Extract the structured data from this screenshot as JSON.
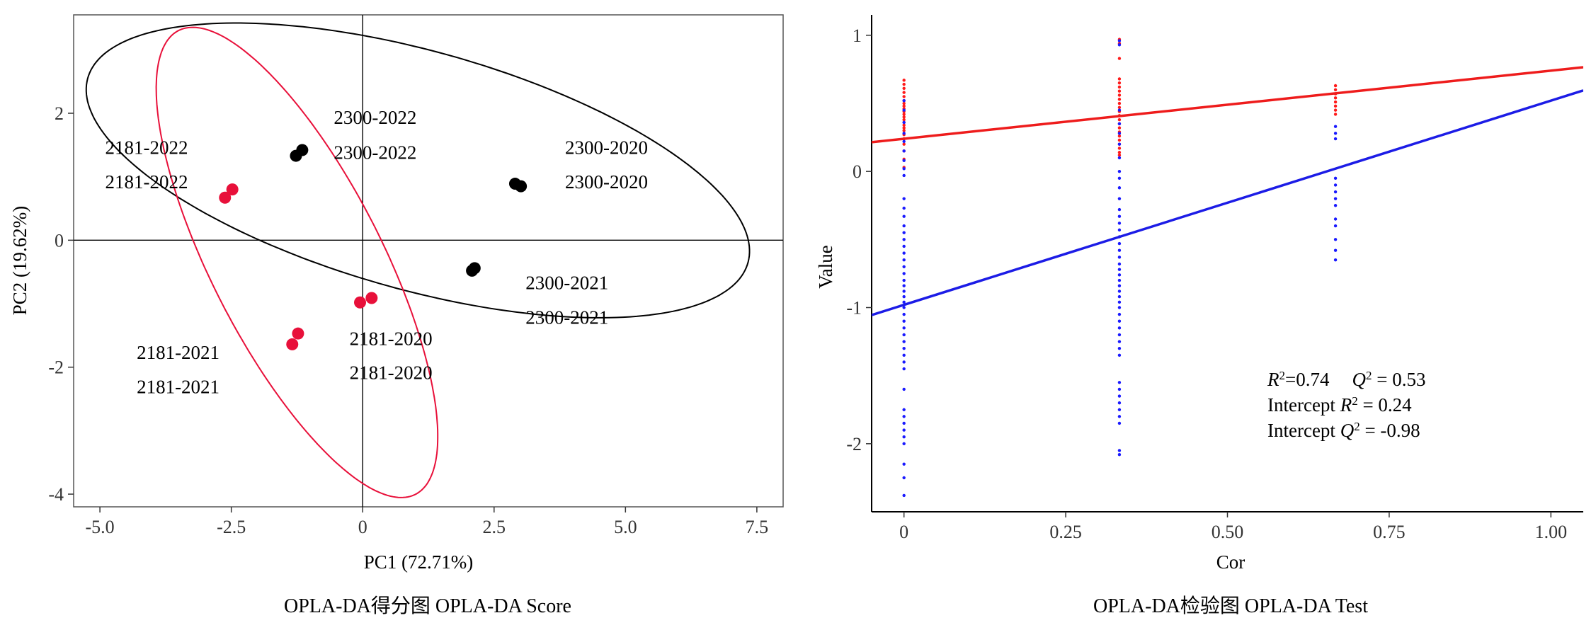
{
  "figure": {
    "panels": [
      {
        "caption": "OPLA-DA得分图 OPLA-DA Score"
      },
      {
        "caption": "OPLA-DA检验图 OPLA-DA Test"
      }
    ]
  },
  "chart_data": [
    {
      "type": "scatter",
      "title": "",
      "xlabel": "PC1 (72.71%)",
      "ylabel": "PC2 (19.62%)",
      "xlim": [
        -5.5,
        8.0
      ],
      "ylim": [
        -4.2,
        3.55
      ],
      "xticks": [
        -5.0,
        -2.5,
        0,
        2.5,
        5.0,
        7.5
      ],
      "xtick_labels": [
        "-5.0",
        "-2.5",
        "0",
        "2.5",
        "5.0",
        "7.5"
      ],
      "yticks": [
        2,
        0,
        -2,
        -4
      ],
      "ytick_labels": [
        "2",
        "0",
        "-2",
        "-4"
      ],
      "grid": false,
      "reference_lines": {
        "x": 0,
        "y": 0
      },
      "colors": {
        "group_2181": "#e8103a",
        "group_2300": "#000000",
        "ellipse_2181": "#e8103a",
        "ellipse_2300": "#000000"
      },
      "series": [
        {
          "group": "2181",
          "color": "#e8103a",
          "points": [
            {
              "x": -2.62,
              "y": 0.67
            },
            {
              "x": -2.48,
              "y": 0.8
            },
            {
              "x": -0.05,
              "y": -0.98
            },
            {
              "x": 0.17,
              "y": -0.91
            },
            {
              "x": -1.34,
              "y": -1.64
            },
            {
              "x": -1.23,
              "y": -1.47
            }
          ]
        },
        {
          "group": "2300",
          "color": "#000000",
          "points": [
            {
              "x": -1.27,
              "y": 1.33
            },
            {
              "x": -1.15,
              "y": 1.42
            },
            {
              "x": 2.9,
              "y": 0.89
            },
            {
              "x": 3.01,
              "y": 0.85
            },
            {
              "x": 2.08,
              "y": -0.48
            },
            {
              "x": 2.13,
              "y": -0.44
            }
          ]
        }
      ],
      "ellipses": [
        {
          "group": "2300",
          "color": "#000000",
          "center": [
            1.05,
            1.1
          ],
          "semi_axes": [
            6.45,
            1.9
          ],
          "angle_deg": -12.5
        },
        {
          "group": "2181",
          "color": "#e8103a",
          "center": [
            -1.25,
            -0.35
          ],
          "semi_axes": [
            4.3,
            1.55
          ],
          "angle_deg": -57
        }
      ],
      "annotations": [
        {
          "text": "2300-2022",
          "x": -0.55,
          "y": 1.83
        },
        {
          "text": "2300-2022",
          "x": -0.55,
          "y": 1.28
        },
        {
          "text": "2181-2022",
          "x": -4.9,
          "y": 1.36
        },
        {
          "text": "2181-2022",
          "x": -4.9,
          "y": 0.82
        },
        {
          "text": "2300-2020",
          "x": 3.85,
          "y": 1.36
        },
        {
          "text": "2300-2020",
          "x": 3.85,
          "y": 0.82
        },
        {
          "text": "2300-2021",
          "x": 3.1,
          "y": -0.77
        },
        {
          "text": "2300-2021",
          "x": 3.1,
          "y": -1.32
        },
        {
          "text": "2181-2020",
          "x": -0.25,
          "y": -1.65
        },
        {
          "text": "2181-2020",
          "x": -0.25,
          "y": -2.19
        },
        {
          "text": "2181-2021",
          "x": -4.3,
          "y": -1.87
        },
        {
          "text": "2181-2021",
          "x": -4.3,
          "y": -2.41
        }
      ]
    },
    {
      "type": "scatter",
      "title": "",
      "xlabel": "Cor",
      "ylabel": "Value",
      "xlim": [
        -0.05,
        1.05
      ],
      "ylim": [
        -2.5,
        1.15
      ],
      "xticks": [
        0,
        0.25,
        0.5,
        0.75,
        1.0
      ],
      "xtick_labels": [
        "0",
        "0.25",
        "0.50",
        "0.75",
        "1.00"
      ],
      "yticks": [
        1,
        0,
        -1,
        -2
      ],
      "ytick_labels": [
        "1",
        "0",
        "-1",
        "-2"
      ],
      "grid": false,
      "colors": {
        "R2": "#ff1a1a",
        "Q2": "#1a1aff",
        "R2_line": "#ee1c1c",
        "Q2_line": "#1c1ce6"
      },
      "series": [
        {
          "metric": "R2",
          "color": "#ff1a1a",
          "x": 0,
          "values": [
            0.67,
            0.64,
            0.61,
            0.58,
            0.55,
            0.52,
            0.5,
            0.48,
            0.46,
            0.44,
            0.42,
            0.4,
            0.38,
            0.36,
            0.34,
            0.32,
            0.3,
            0.27,
            0.24,
            0.2,
            0.15,
            0.09,
            0.03
          ]
        },
        {
          "metric": "Q2",
          "color": "#1a1aff",
          "x": 0,
          "values": [
            0.52,
            0.45,
            0.36,
            0.28,
            0.22,
            0.15,
            0.08,
            0.02,
            -0.03,
            -0.2,
            -0.27,
            -0.33,
            -0.4,
            -0.45,
            -0.5,
            -0.55,
            -0.6,
            -0.65,
            -0.7,
            -0.75,
            -0.8,
            -0.84,
            -0.88,
            -0.92,
            -0.96,
            -1.0,
            -1.05,
            -1.1,
            -1.15,
            -1.2,
            -1.25,
            -1.3,
            -1.35,
            -1.4,
            -1.45,
            -1.6,
            -1.75,
            -1.8,
            -1.85,
            -1.9,
            -1.95,
            -2.0,
            -2.15,
            -2.25,
            -2.38
          ]
        },
        {
          "metric": "R2",
          "color": "#ff1a1a",
          "x": 0.333,
          "values": [
            0.97,
            0.94,
            0.83,
            0.68,
            0.65,
            0.62,
            0.59,
            0.56,
            0.53,
            0.5,
            0.47,
            0.44,
            0.41,
            0.38,
            0.35,
            0.32,
            0.29,
            0.26,
            0.23,
            0.2,
            0.17,
            0.14,
            0.12
          ]
        },
        {
          "metric": "Q2",
          "color": "#1a1aff",
          "x": 0.333,
          "values": [
            0.96,
            0.93,
            0.45,
            0.35,
            0.28,
            0.2,
            0.1,
            0.0,
            -0.05,
            -0.12,
            -0.2,
            -0.28,
            -0.33,
            -0.38,
            -0.43,
            -0.48,
            -0.53,
            -0.58,
            -0.63,
            -0.68,
            -0.72,
            -0.76,
            -0.8,
            -0.84,
            -0.88,
            -0.92,
            -0.96,
            -1.0,
            -1.05,
            -1.1,
            -1.15,
            -1.2,
            -1.25,
            -1.3,
            -1.35,
            -1.55,
            -1.6,
            -1.65,
            -1.7,
            -1.75,
            -1.8,
            -1.85,
            -2.05,
            -2.08
          ]
        },
        {
          "metric": "R2",
          "color": "#ff1a1a",
          "x": 0.667,
          "values": [
            0.63,
            0.6,
            0.57,
            0.54,
            0.51,
            0.48,
            0.45,
            0.42
          ]
        },
        {
          "metric": "Q2",
          "color": "#1a1aff",
          "x": 0.667,
          "values": [
            0.33,
            0.28,
            0.24,
            -0.05,
            -0.1,
            -0.15,
            -0.2,
            -0.25,
            -0.35,
            -0.4,
            -0.5,
            -0.58,
            -0.65
          ]
        }
      ],
      "regression_lines": [
        {
          "metric": "R2",
          "color": "#ee1c1c",
          "intercept": 0.24,
          "slope": 0.5
        },
        {
          "metric": "Q2",
          "color": "#1c1ce6",
          "intercept": -0.98,
          "slope": 1.5
        }
      ],
      "annotations": {
        "line1_r2": "R",
        "line1_r2_sup": "2",
        "line1_r2_value": "=0.74",
        "line1_q2": "Q",
        "line1_q2_sup": "2",
        "line1_q2_value": " = 0.53",
        "line2_prefix": "Intercept ",
        "line2_var": "R",
        "line2_sup": "2",
        "line2_value": " = 0.24",
        "line3_prefix": "Intercept ",
        "line3_var": "Q",
        "line3_sup": "2",
        "line3_value": " = -0.98"
      }
    }
  ]
}
